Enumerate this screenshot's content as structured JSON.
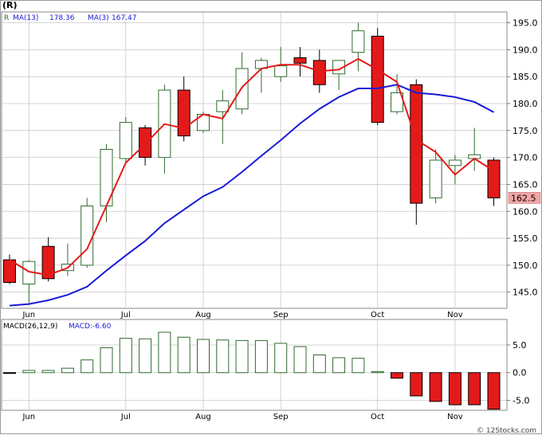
{
  "header": {
    "ticker": "(R)",
    "legend_prefix": "R",
    "ma13_label": "MA(13)",
    "ma13_value": "178.36",
    "ma3_label": "MA(3)",
    "ma3_value": "167.47"
  },
  "macd_header": {
    "label": "MACD(26,12,9)",
    "value_label": "MACD:-6.60"
  },
  "footer": {
    "credit": "© 12Stocks.com"
  },
  "colors": {
    "up_candle": "#2f6b2f",
    "down_candle": "#e41a1a",
    "ma13": "#1a1ad6",
    "ma3": "#e41a1a",
    "grid": "#c8c8c8",
    "price_badge": "#f4a6a6"
  },
  "chart_data": {
    "type": "candlestick",
    "price_axis": {
      "ylim": [
        142,
        197
      ],
      "ticks": [
        "145.0",
        "150.0",
        "155.0",
        "160.0",
        "165.0",
        "170.0",
        "175.0",
        "180.0",
        "185.0",
        "190.0",
        "195.0"
      ],
      "tick_values": [
        145,
        150,
        155,
        160,
        165,
        170,
        175,
        180,
        185,
        190,
        195
      ]
    },
    "months": [
      {
        "label": "Jun",
        "index": 1
      },
      {
        "label": "Jul",
        "index": 6
      },
      {
        "label": "Aug",
        "index": 10
      },
      {
        "label": "Sep",
        "index": 14
      },
      {
        "label": "Oct",
        "index": 19
      },
      {
        "label": "Nov",
        "index": 23
      }
    ],
    "last_price": "162.5",
    "candles": [
      {
        "o": 151.0,
        "h": 152.0,
        "l": 146.5,
        "c": 146.8
      },
      {
        "o": 146.5,
        "h": 151.0,
        "l": 143.0,
        "c": 150.7
      },
      {
        "o": 153.5,
        "h": 155.2,
        "l": 147.0,
        "c": 147.5
      },
      {
        "o": 149.0,
        "h": 154.0,
        "l": 148.0,
        "c": 150.2
      },
      {
        "o": 150.0,
        "h": 162.5,
        "l": 149.5,
        "c": 161.0
      },
      {
        "o": 161.0,
        "h": 172.5,
        "l": 158.0,
        "c": 171.5
      },
      {
        "o": 169.8,
        "h": 177.5,
        "l": 169.0,
        "c": 176.5
      },
      {
        "o": 175.5,
        "h": 176.0,
        "l": 168.5,
        "c": 170.0
      },
      {
        "o": 170.0,
        "h": 183.5,
        "l": 167.0,
        "c": 182.5
      },
      {
        "o": 182.5,
        "h": 185.0,
        "l": 173.0,
        "c": 174.0
      },
      {
        "o": 175.0,
        "h": 178.5,
        "l": 174.5,
        "c": 178.0
      },
      {
        "o": 178.5,
        "h": 182.5,
        "l": 172.5,
        "c": 180.5
      },
      {
        "o": 179.0,
        "h": 189.5,
        "l": 178.0,
        "c": 186.5
      },
      {
        "o": 186.5,
        "h": 188.5,
        "l": 182.0,
        "c": 188.0
      },
      {
        "o": 185.0,
        "h": 190.5,
        "l": 184.0,
        "c": 187.0
      },
      {
        "o": 188.5,
        "h": 190.5,
        "l": 185.0,
        "c": 187.5
      },
      {
        "o": 188.0,
        "h": 190.0,
        "l": 182.0,
        "c": 183.5
      },
      {
        "o": 185.5,
        "h": 188.0,
        "l": 182.5,
        "c": 188.0
      },
      {
        "o": 189.5,
        "h": 195.0,
        "l": 186.0,
        "c": 193.5
      },
      {
        "o": 192.5,
        "h": 194.0,
        "l": 176.0,
        "c": 176.5
      },
      {
        "o": 178.5,
        "h": 185.5,
        "l": 178.0,
        "c": 182.0
      },
      {
        "o": 183.5,
        "h": 184.5,
        "l": 157.5,
        "c": 161.5
      },
      {
        "o": 162.5,
        "h": 171.5,
        "l": 161.5,
        "c": 169.5
      },
      {
        "o": 168.5,
        "h": 170.5,
        "l": 165.0,
        "c": 169.5
      },
      {
        "o": 169.8,
        "h": 175.5,
        "l": 167.5,
        "c": 170.5
      },
      {
        "o": 169.5,
        "h": 170.0,
        "l": 161.0,
        "c": 162.5
      }
    ],
    "ma13": [
      {
        "i": 0,
        "v": 142.5
      },
      {
        "i": 1,
        "v": 142.8
      },
      {
        "i": 2,
        "v": 143.5
      },
      {
        "i": 3,
        "v": 144.5
      },
      {
        "i": 4,
        "v": 146.0
      },
      {
        "i": 5,
        "v": 149.0
      },
      {
        "i": 6,
        "v": 151.8
      },
      {
        "i": 7,
        "v": 154.5
      },
      {
        "i": 8,
        "v": 157.8
      },
      {
        "i": 9,
        "v": 160.3
      },
      {
        "i": 10,
        "v": 162.8
      },
      {
        "i": 11,
        "v": 164.5
      },
      {
        "i": 12,
        "v": 167.3
      },
      {
        "i": 13,
        "v": 170.3
      },
      {
        "i": 14,
        "v": 173.2
      },
      {
        "i": 15,
        "v": 176.3
      },
      {
        "i": 16,
        "v": 179.0
      },
      {
        "i": 17,
        "v": 181.2
      },
      {
        "i": 18,
        "v": 182.8
      },
      {
        "i": 19,
        "v": 182.8
      },
      {
        "i": 20,
        "v": 183.5
      },
      {
        "i": 21,
        "v": 182.0
      },
      {
        "i": 22,
        "v": 181.7
      },
      {
        "i": 23,
        "v": 181.2
      },
      {
        "i": 24,
        "v": 180.3
      },
      {
        "i": 25,
        "v": 178.4
      }
    ],
    "ma3": [
      {
        "i": 0,
        "v": 151.0
      },
      {
        "i": 1,
        "v": 148.8
      },
      {
        "i": 2,
        "v": 148.2
      },
      {
        "i": 3,
        "v": 149.5
      },
      {
        "i": 4,
        "v": 153.0
      },
      {
        "i": 5,
        "v": 161.0
      },
      {
        "i": 6,
        "v": 169.0
      },
      {
        "i": 7,
        "v": 172.5
      },
      {
        "i": 8,
        "v": 176.2
      },
      {
        "i": 9,
        "v": 175.4
      },
      {
        "i": 10,
        "v": 178.0
      },
      {
        "i": 11,
        "v": 177.2
      },
      {
        "i": 12,
        "v": 183.0
      },
      {
        "i": 13,
        "v": 186.5
      },
      {
        "i": 14,
        "v": 187.2
      },
      {
        "i": 15,
        "v": 187.2
      },
      {
        "i": 16,
        "v": 186.0
      },
      {
        "i": 17,
        "v": 186.3
      },
      {
        "i": 18,
        "v": 188.3
      },
      {
        "i": 19,
        "v": 186.3
      },
      {
        "i": 20,
        "v": 184.0
      },
      {
        "i": 21,
        "v": 173.3
      },
      {
        "i": 22,
        "v": 171.0
      },
      {
        "i": 23,
        "v": 166.8
      },
      {
        "i": 24,
        "v": 169.8
      },
      {
        "i": 25,
        "v": 167.5
      }
    ],
    "macd_axis": {
      "ylim": [
        -6.8,
        9.6
      ],
      "ticks": [
        "5.0",
        "0.0",
        "-5.0"
      ],
      "tick_values": [
        5,
        0,
        -5
      ]
    },
    "macd": [
      -0.1,
      0.4,
      0.4,
      0.8,
      2.3,
      4.5,
      6.2,
      6.1,
      7.3,
      6.4,
      6.0,
      5.9,
      5.8,
      5.8,
      5.3,
      4.7,
      3.2,
      2.7,
      2.6,
      0.2,
      -1.0,
      -4.2,
      -5.2,
      -5.8,
      -5.8,
      -6.6
    ]
  }
}
